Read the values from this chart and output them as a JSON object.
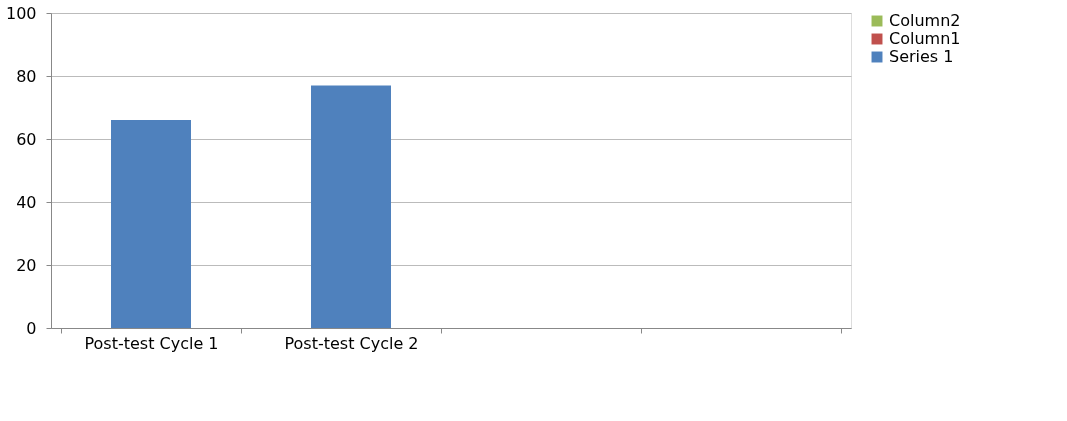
{
  "chart_data": {
    "type": "bar",
    "categories": [
      "Post-test Cycle 1",
      "Post-test Cycle 2",
      null,
      null
    ],
    "stacked": true,
    "series": [
      {
        "name": "Series 1",
        "color": "#4f81bd",
        "values": [
          66,
          77,
          null,
          null
        ]
      },
      {
        "name": "Column1",
        "color": "#c0504d",
        "values": [
          null,
          null,
          null,
          null
        ]
      },
      {
        "name": "Column2",
        "color": "#9bbb59",
        "values": [
          null,
          null,
          null,
          null
        ]
      }
    ],
    "ylim": [
      0,
      100
    ],
    "yticks": [
      0,
      20,
      40,
      60,
      80,
      100
    ],
    "grid": "y",
    "legend": "right"
  }
}
